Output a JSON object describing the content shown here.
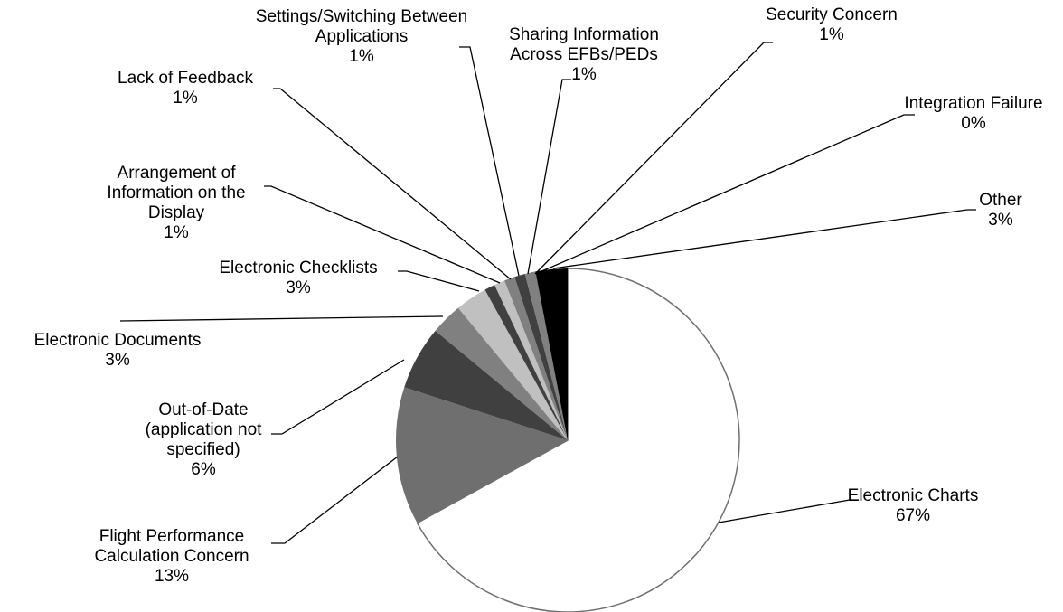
{
  "chart_data": {
    "type": "pie",
    "categories": [
      "Electronic Charts",
      "Flight Performance Calculation Concern",
      "Out-of-Date (application not specified)",
      "Electronic Documents",
      "Electronic Checklists",
      "Arrangement of Information on the Display",
      "Lack of Feedback",
      "Settings/Switching Between Applications",
      "Sharing Information Across EFBs/PEDs",
      "Security Concern",
      "Integration Failure",
      "Other"
    ],
    "values": [
      67,
      13,
      6,
      3,
      3,
      1,
      1,
      1,
      1,
      1,
      0,
      3
    ],
    "value_labels": [
      "67%",
      "13%",
      "6%",
      "3%",
      "3%",
      "1%",
      "1%",
      "1%",
      "1%",
      "1%",
      "0%",
      "3%"
    ],
    "colors": [
      "#ffffff",
      "#6f6f6f",
      "#404040",
      "#808080",
      "#c0c0c0",
      "#404040",
      "#c0c0c0",
      "#808080",
      "#404040",
      "#808080",
      "#c0c0c0",
      "#000000"
    ]
  }
}
